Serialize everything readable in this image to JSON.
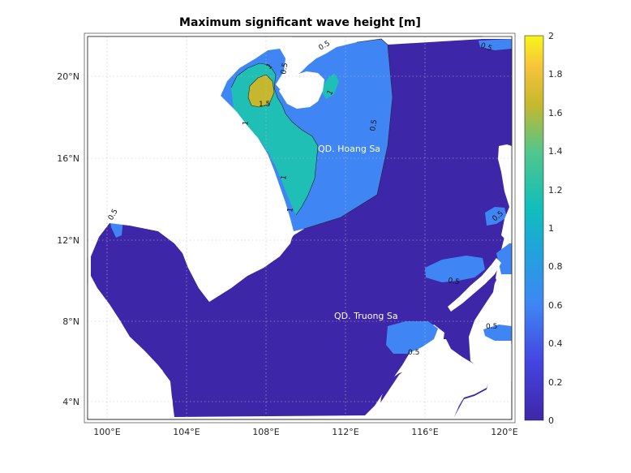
{
  "title": "Maximum significant wave height [m]",
  "chart_data": {
    "type": "heatmap",
    "title": "Maximum significant wave height [m]",
    "x_ticks": [
      "100°E",
      "104°E",
      "108°E",
      "112°E",
      "116°E",
      "120°E"
    ],
    "y_ticks": [
      "4°N",
      "8°N",
      "12°N",
      "16°N",
      "20°N"
    ],
    "colorbar": {
      "min": 0,
      "max": 2,
      "ticks": [
        "0",
        "0.2",
        "0.4",
        "0.6",
        "0.8",
        "1",
        "1.2",
        "1.4",
        "1.6",
        "1.8",
        "2"
      ]
    },
    "contour_labels": [
      "0.5",
      "0.5",
      "1",
      "1",
      "1",
      "1.5",
      "1",
      "1",
      "0.5",
      "0.5",
      "0.5",
      "0.5",
      "0.5",
      "0.5",
      "0.5"
    ],
    "place_labels": [
      "QD. Hoang Sa",
      "QD. Truong Sa"
    ],
    "colors": {
      "level_0": "#3e26a8",
      "level_0_5": "#3f86f4",
      "level_1": "#1fbfb5",
      "level_1_5": "#c5b82e",
      "land": "#ffffff"
    }
  }
}
